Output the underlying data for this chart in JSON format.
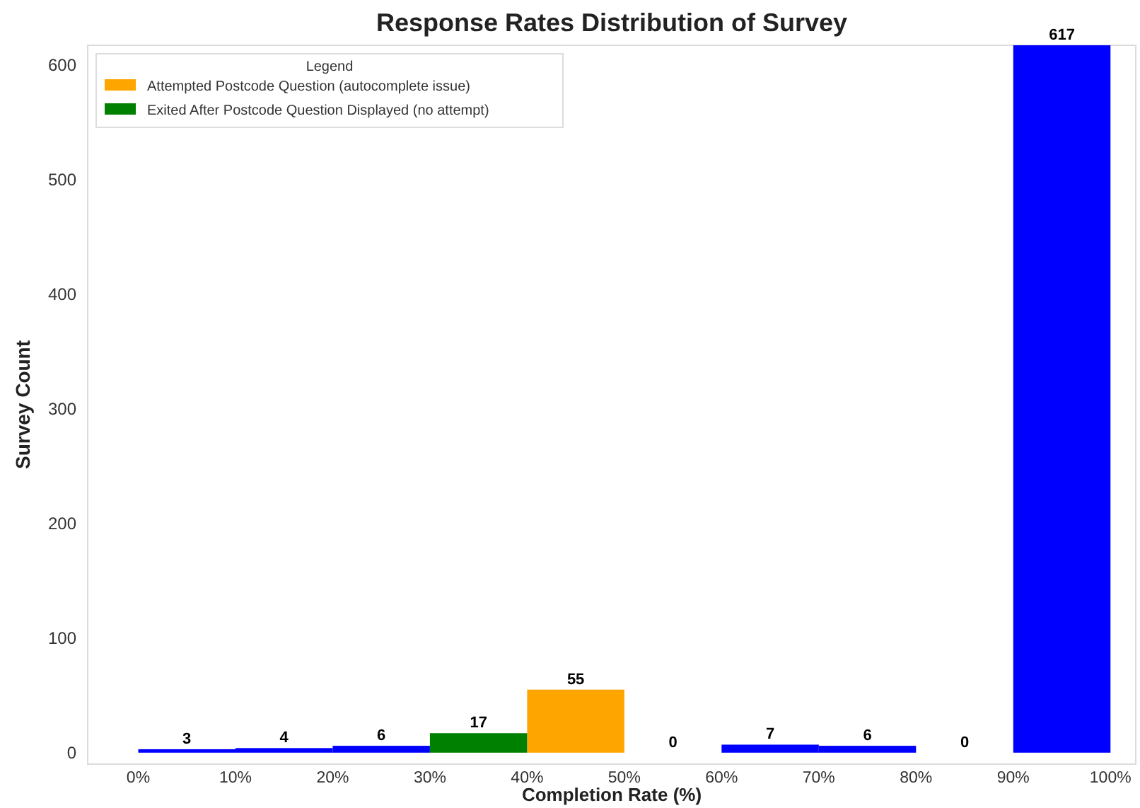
{
  "chart_data": {
    "type": "histogram",
    "title": "Response Rates Distribution of Survey",
    "xlabel": "Completion Rate (%)",
    "ylabel": "Survey Count",
    "legend_title": "Legend",
    "legend": "top left",
    "grid": false,
    "data_labels": true,
    "bins": [
      0,
      10,
      20,
      30,
      40,
      50,
      60,
      70,
      80,
      90,
      100
    ],
    "series": [
      {
        "color": "#0000ff",
        "values": [
          3,
          4,
          6,
          null,
          null,
          0,
          7,
          6,
          0,
          617
        ]
      },
      {
        "name": "Attempted Postcode Question (autocomplete issue)",
        "color": "#ffa500",
        "values": [
          null,
          null,
          null,
          null,
          55,
          null,
          null,
          null,
          null,
          null
        ]
      },
      {
        "name": "Exited After Postcode Question Displayed (no attempt)",
        "color": "#008000",
        "values": [
          null,
          null,
          null,
          17,
          null,
          null,
          null,
          null,
          null,
          null
        ]
      }
    ],
    "xlim": [
      -5.2,
      102.6
    ],
    "ylim": [
      -10,
      617
    ],
    "xticks": [
      {
        "value": 0,
        "label": "0%"
      },
      {
        "value": 10,
        "label": "10%"
      },
      {
        "value": 20,
        "label": "20%"
      },
      {
        "value": 30,
        "label": "30%"
      },
      {
        "value": 40,
        "label": "40%"
      },
      {
        "value": 50,
        "label": "50%"
      },
      {
        "value": 60,
        "label": "60%"
      },
      {
        "value": 70,
        "label": "70%"
      },
      {
        "value": 80,
        "label": "80%"
      },
      {
        "value": 90,
        "label": "90%"
      },
      {
        "value": 100,
        "label": "100%"
      }
    ],
    "yticks": [
      0,
      100,
      200,
      300,
      400,
      500,
      600
    ]
  }
}
